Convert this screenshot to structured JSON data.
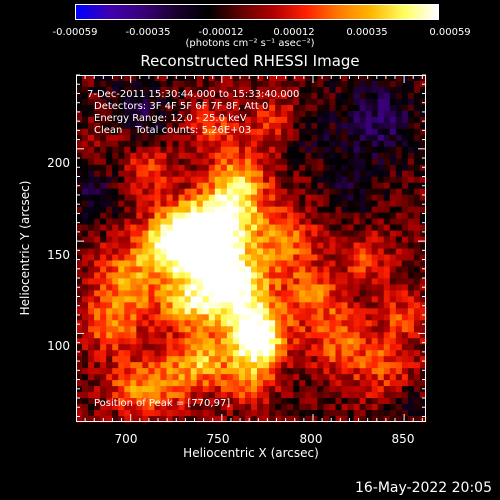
{
  "colorbar": {
    "tick_labels": [
      "-0.00059",
      "-0.00035",
      "-0.00012",
      "0.00012",
      "0.00035",
      "0.00059"
    ],
    "units": "(photons cm⁻² s⁻¹ asec⁻²)",
    "colors": [
      "#0000ff",
      "#4000b0",
      "#3a007a",
      "#1a0030",
      "#000000",
      "#600000",
      "#b00000",
      "#ff2000",
      "#ff7a00",
      "#ffb800",
      "#ffff60",
      "#ffffff"
    ]
  },
  "chart_data": {
    "type": "heatmap",
    "title": "Reconstructed RHESSI Image",
    "xlabel": "Heliocentric X (arcsec)",
    "ylabel": "Heliocentric Y (arcsec)",
    "xlim": [
      670,
      862
    ],
    "ylim": [
      52,
      240
    ],
    "xticks": [
      700,
      750,
      800,
      850
    ],
    "yticks": [
      100,
      150,
      200
    ],
    "annotations": {
      "time_range": "7-Dec-2011 15:30:44.000 to 15:33:40.000",
      "detectors": "Detectors: 3F 4F 5F 6F 7F 8F, Att 0",
      "energy": "Energy Range: 12.0 - 25.0 keV",
      "method": "Clean    Total counts: 5.26E+03",
      "peak": "Position of Peak = [770,97]"
    },
    "peak_position": [
      770,
      97
    ],
    "value_range": [
      -0.00059,
      0.00059
    ]
  },
  "footer": {
    "date": "16-May-2022 20:05"
  }
}
